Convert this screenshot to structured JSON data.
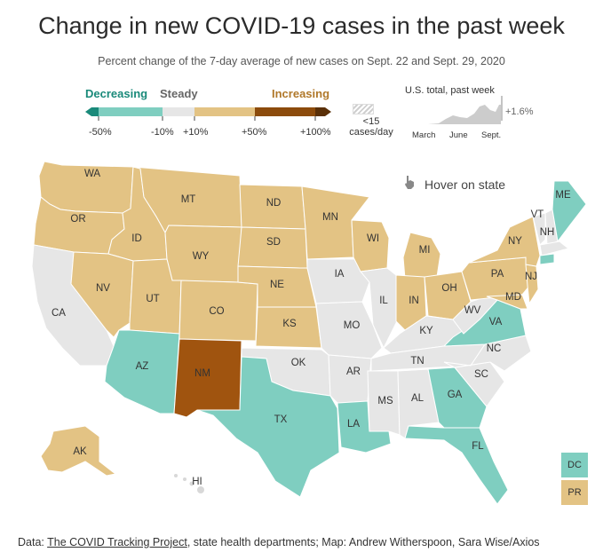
{
  "title": "Change in new COVID-19 cases in the past week",
  "subtitle": "Percent change of the 7-day average of new cases on Sept. 22 and Sept. 29, 2020",
  "legend": {
    "decreasing": "Decreasing",
    "steady": "Steady",
    "increasing": "Increasing",
    "ticks": [
      "-50%",
      "-10%",
      "+10%",
      "+50%",
      "+100%"
    ],
    "hatch_line1": "<15",
    "hatch_line2": "cases/day",
    "colors": {
      "decreasing_strong": "#1a8a7a",
      "decreasing": "#7fcec0",
      "steady": "#e6e6e6",
      "increasing": "#e3c384",
      "increasing_strong": "#8c4b0c",
      "increasing_max": "#5a3008"
    }
  },
  "us_total": {
    "title": "U.S. total, past week",
    "value": "+1.6%",
    "x_labels": [
      "March",
      "June",
      "Sept."
    ]
  },
  "hover_hint": "Hover on state",
  "hover_icon": "pointer-hand-icon",
  "states": {
    "WA": "WA",
    "OR": "OR",
    "CA": "CA",
    "ID": "ID",
    "NV": "NV",
    "MT": "MT",
    "WY": "WY",
    "UT": "UT",
    "AZ": "AZ",
    "CO": "CO",
    "NM": "NM",
    "ND": "ND",
    "SD": "SD",
    "NE": "NE",
    "KS": "KS",
    "OK": "OK",
    "TX": "TX",
    "MN": "MN",
    "IA": "IA",
    "MO": "MO",
    "AR": "AR",
    "LA": "LA",
    "WI": "WI",
    "IL": "IL",
    "MS": "MS",
    "MI": "MI",
    "IN": "IN",
    "KY": "KY",
    "TN": "TN",
    "AL": "AL",
    "OH": "OH",
    "GA": "GA",
    "FL": "FL",
    "SC": "SC",
    "NC": "NC",
    "VA": "VA",
    "WV": "WV",
    "PA": "PA",
    "NY": "NY",
    "MD": "MD",
    "NJ": "NJ",
    "VT": "VT",
    "NH": "NH",
    "ME": "ME",
    "AK": "AK",
    "HI": "HI"
  },
  "territories": {
    "DC": "DC",
    "PR": "PR"
  },
  "footer": {
    "prefix": "Data: ",
    "link": "The COVID Tracking Project",
    "rest": ", state health departments; Map: Andrew Witherspoon, Sara Wise/Axios"
  }
}
